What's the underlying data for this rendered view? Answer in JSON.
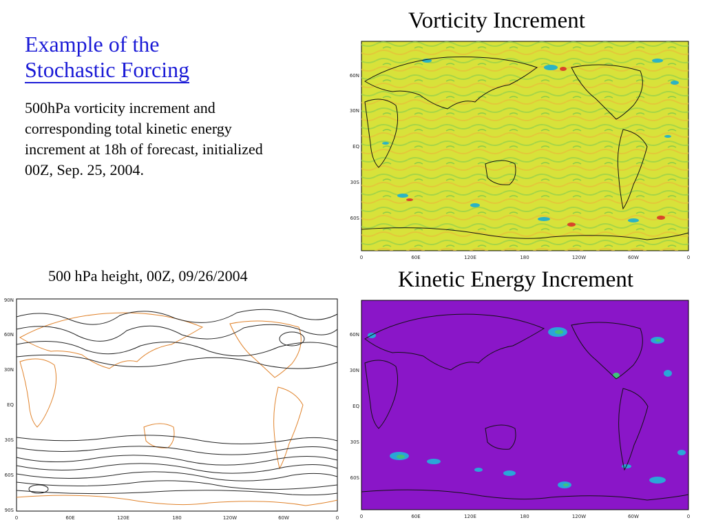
{
  "slide": {
    "title_line1": "Example of the",
    "title_line2": "Stochastic Forcing",
    "description_lines": [
      "500hPa vorticity increment and",
      "corresponding total kinetic energy",
      "increment at 18h of forecast, initialized",
      "00Z, Sep. 25, 2004."
    ]
  },
  "panels": {
    "vorticity": {
      "caption": "Vorticity Increment",
      "background": "#d8e23a",
      "lat_ticks": [
        "60N",
        "30N",
        "EQ",
        "30S",
        "60S"
      ],
      "lon_ticks": [
        "0",
        "60E",
        "120E",
        "180",
        "120W",
        "60W",
        "0"
      ]
    },
    "height": {
      "caption": "500 hPa height, 00Z, 09/26/2004",
      "background": "#ffffff",
      "coast_color": "#e0822a",
      "lat_ticks": [
        "90N",
        "60N",
        "30N",
        "EQ",
        "30S",
        "60S",
        "90S"
      ],
      "lon_ticks": [
        "0",
        "60E",
        "120E",
        "180",
        "120W",
        "60W",
        "0"
      ]
    },
    "kinetic_energy": {
      "caption": "Kinetic Energy Increment",
      "background": "#8a16c8",
      "lat_ticks": [
        "60N",
        "30N",
        "EQ",
        "30S",
        "60S"
      ],
      "lon_ticks": [
        "0",
        "60E",
        "120E",
        "180",
        "120W",
        "60W",
        "0"
      ]
    }
  }
}
